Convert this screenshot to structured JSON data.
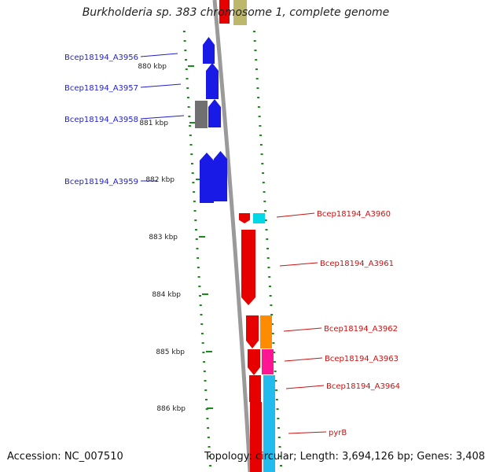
{
  "title": "Burkholderia sp. 383 chromosome 1, complete genome",
  "footer": {
    "accession": "Accession: NC_007510",
    "summary": "Topology: circular; Length: 3,694,126 bp; Genes: 3,408"
  },
  "colors": {
    "backbone": "#9a9a9a",
    "tick": "#1a8a1a",
    "left_label": "#1f1fcc",
    "right_label": "#cc1111",
    "gene_blue": "#1a1ae6",
    "gene_red": "#e60000",
    "gene_gray": "#707070",
    "gene_cyan": "#00d8e8",
    "gene_orange": "#ff8c00",
    "gene_magenta": "#ff1493",
    "gene_sky": "#22bbee",
    "gene_olive": "#bdb76b"
  },
  "scale_labels": [
    "880 kbp",
    "881 kbp",
    "882 kbp",
    "883 kbp",
    "884 kbp",
    "885 kbp",
    "886 kbp"
  ],
  "genes": {
    "left": [
      "Bcep18194_A3956",
      "Bcep18194_A3957",
      "Bcep18194_A3958",
      "Bcep18194_A3959"
    ],
    "right": [
      "Bcep18194_A3960",
      "Bcep18194_A3961",
      "Bcep18194_A3962",
      "Bcep18194_A3963",
      "Bcep18194_A3964",
      "pyrB"
    ]
  }
}
